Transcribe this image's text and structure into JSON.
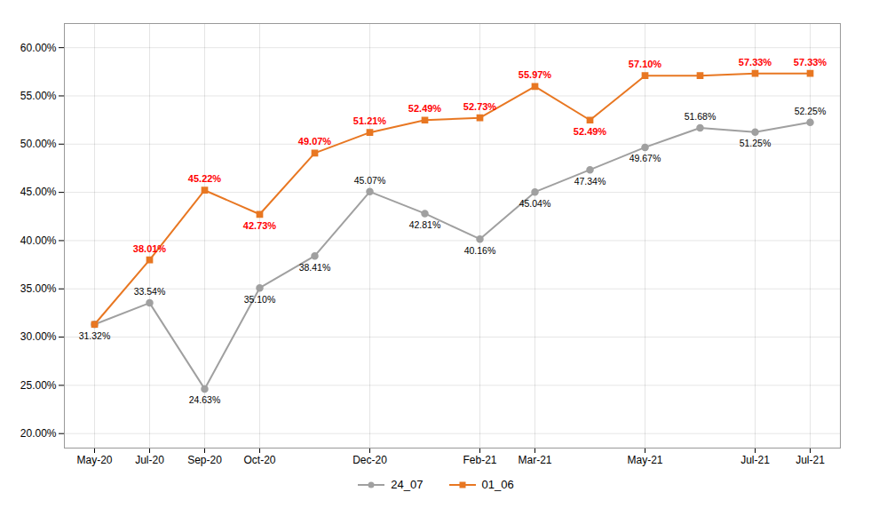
{
  "chart_data": {
    "type": "line",
    "categories": [
      "May-20",
      "Jul-20",
      "Sep-20",
      "Oct-20",
      null,
      "Dec-20",
      null,
      "Feb-21",
      "Mar-21",
      null,
      "May-21",
      null,
      "Jul-21",
      "Jul-21"
    ],
    "series": [
      {
        "name": "24_07",
        "color": "#A0A0A0",
        "marker": "circle",
        "values": [
          0.3132,
          0.3354,
          0.2463,
          0.351,
          0.3841,
          0.4507,
          0.4281,
          0.4016,
          0.4504,
          0.4734,
          0.4967,
          0.5168,
          0.5125,
          0.5225
        ],
        "value_labels": [
          "31.32%",
          "33.54%",
          "24.63%",
          "35.10%",
          "38.41%",
          "45.07%",
          "42.81%",
          "40.16%",
          "45.04%",
          "47.34%",
          "49.67%",
          "51.68%",
          "51.25%",
          "52.25%"
        ]
      },
      {
        "name": "01_06",
        "color": "#E87722",
        "marker": "square",
        "values": [
          0.3132,
          0.3801,
          0.4522,
          0.4273,
          0.4907,
          0.5121,
          0.5249,
          0.5273,
          0.5597,
          0.5249,
          0.571,
          0.571,
          0.5733,
          0.5733
        ],
        "value_labels": [
          null,
          "38.01%",
          "45.22%",
          "42.73%",
          "49.07%",
          "51.21%",
          "52.49%",
          "52.73%",
          "55.97%",
          "52.49%",
          "57.10%",
          null,
          "57.33%",
          "57.33%"
        ]
      }
    ],
    "ylim": [
      0.185,
      0.625
    ],
    "yticks": [
      {
        "value": 0.2,
        "label": "20.00%"
      },
      {
        "value": 0.25,
        "label": "25.00%"
      },
      {
        "value": 0.3,
        "label": "30.00%"
      },
      {
        "value": 0.35,
        "label": "35.00%"
      },
      {
        "value": 0.4,
        "label": "40.00%"
      },
      {
        "value": 0.45,
        "label": "45.00%"
      },
      {
        "value": 0.5,
        "label": "50.00%"
      },
      {
        "value": 0.55,
        "label": "55.00%"
      },
      {
        "value": 0.6,
        "label": "60.00%"
      }
    ],
    "grid": true,
    "legend": "bottom",
    "data_labels": true
  }
}
